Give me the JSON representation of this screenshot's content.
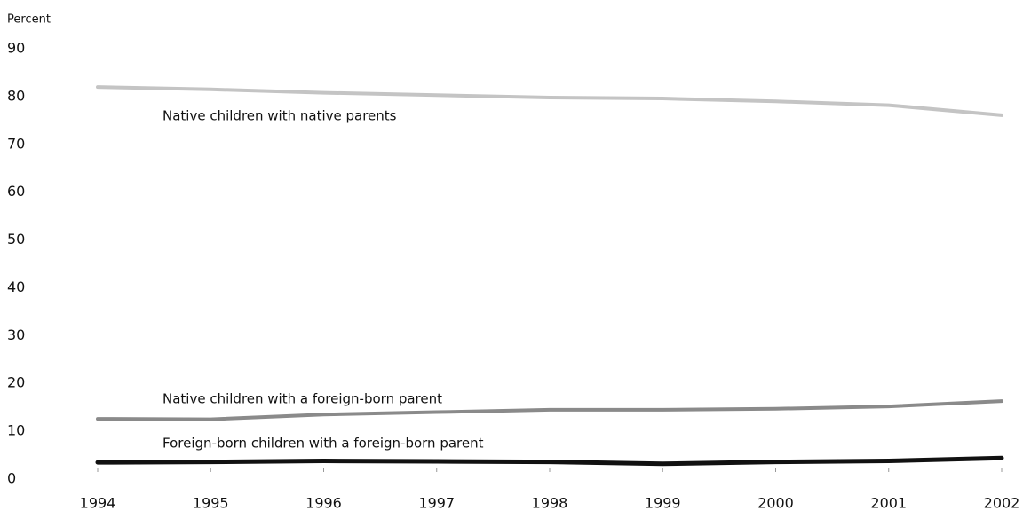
{
  "chart_data": {
    "type": "line",
    "y_label": "Percent",
    "categories": [
      "1994",
      "1995",
      "1996",
      "1997",
      "1998",
      "1999",
      "2000",
      "2001",
      "2002"
    ],
    "series": [
      {
        "name": "Native children with native parents",
        "color": "#c4c4c4",
        "values": [
          82.0,
          81.5,
          80.8,
          80.3,
          79.8,
          79.6,
          79.0,
          78.2,
          76.1
        ]
      },
      {
        "name": "Native children with a foreign-born parent",
        "color": "#8a8a8a",
        "values": [
          12.6,
          12.5,
          13.5,
          14.0,
          14.5,
          14.5,
          14.7,
          15.2,
          16.3
        ]
      },
      {
        "name": "Foreign-born children with a foreign-born parent",
        "color": "#111111",
        "values": [
          3.5,
          3.6,
          3.8,
          3.7,
          3.6,
          3.2,
          3.6,
          3.8,
          4.4
        ]
      }
    ],
    "ylim": [
      0,
      90
    ],
    "yticks": [
      0,
      10,
      20,
      30,
      40,
      50,
      60,
      70,
      80,
      90
    ],
    "grid": false
  }
}
